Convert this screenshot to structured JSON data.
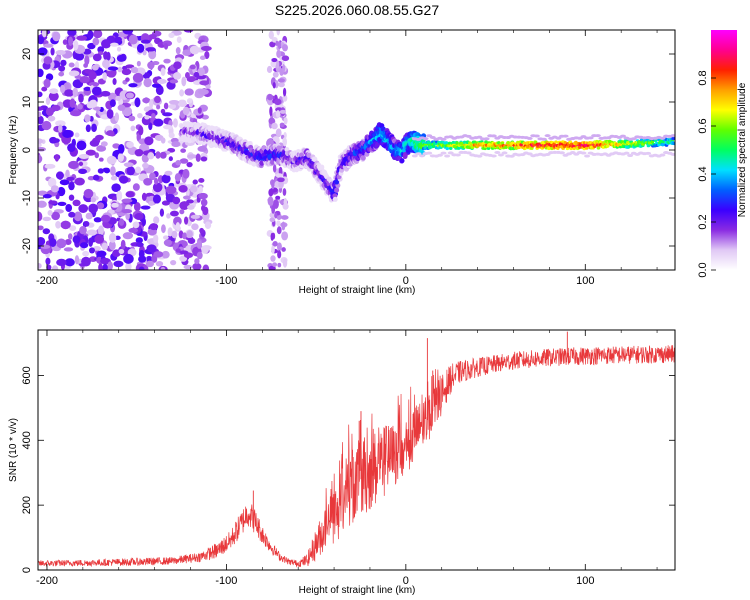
{
  "title": "S225.2026.060.08.55.G27",
  "chart_data": [
    {
      "type": "heatmap",
      "xlabel": "Height of straight line (km)",
      "ylabel": "Frequency (Hz)",
      "xlim": [
        -205,
        150
      ],
      "ylim": [
        -25,
        25
      ],
      "x_ticks": [
        -200,
        -100,
        0,
        100
      ],
      "y_ticks": [
        -20,
        -10,
        0,
        10,
        20
      ],
      "x_tick_labels": [
        "-200",
        "-100",
        "0",
        "100"
      ],
      "y_tick_labels": [
        "-20",
        "-10",
        "0",
        "10",
        "20"
      ],
      "colorbar": {
        "label": "Normalized spectral amplitude",
        "range": [
          0,
          1
        ],
        "ticks": [
          0.0,
          0.2,
          0.4,
          0.6,
          0.8
        ],
        "tick_labels": [
          "0.0",
          "0.2",
          "0.4",
          "0.6",
          "0.8"
        ],
        "colormap": [
          "#ffffff",
          "#e0c8f5",
          "#8a2be2",
          "#3a00ff",
          "#0060ff",
          "#00e0ff",
          "#00ff60",
          "#60ff00",
          "#ffff00",
          "#ffa000",
          "#ff2000",
          "#ff0090",
          "#ff00ff"
        ]
      },
      "ridge": {
        "x": [
          -125,
          -115,
          -105,
          -98,
          -90,
          -82,
          -75,
          -68,
          -62,
          -55,
          -48,
          -44,
          -40,
          -36,
          -30,
          -24,
          -18,
          -14,
          -10,
          -6,
          -2,
          2,
          6,
          10,
          20,
          40,
          60,
          80,
          100,
          120,
          150
        ],
        "y": [
          4.0,
          3.5,
          2.5,
          1.5,
          0.0,
          -1.5,
          -1.0,
          -1.0,
          -2.5,
          -1.5,
          -5.0,
          -7.0,
          -9.0,
          -3.0,
          -1.0,
          0.0,
          2.0,
          3.5,
          2.0,
          0.0,
          -0.5,
          2.0,
          1.5,
          1.0,
          1.0,
          1.0,
          1.0,
          1.0,
          1.0,
          1.2,
          1.8
        ],
        "amplitude": [
          0.15,
          0.2,
          0.22,
          0.24,
          0.25,
          0.28,
          0.3,
          0.24,
          0.2,
          0.27,
          0.22,
          0.25,
          0.3,
          0.25,
          0.28,
          0.32,
          0.38,
          0.45,
          0.4,
          0.38,
          0.42,
          0.45,
          0.55,
          0.6,
          0.62,
          0.75,
          0.82,
          0.88,
          0.9,
          0.72,
          0.5
        ]
      }
    },
    {
      "type": "line",
      "xlabel": "Height of straight line (km)",
      "ylabel": "SNR (10 * v/v)",
      "xlim": [
        -205,
        150
      ],
      "ylim": [
        0,
        740
      ],
      "x_ticks": [
        -200,
        -100,
        0,
        100
      ],
      "y_ticks": [
        0,
        200,
        400,
        600
      ],
      "x_tick_labels": [
        "-200",
        "-100",
        "0",
        "100"
      ],
      "y_tick_labels": [
        "0",
        "200",
        "400",
        "600"
      ],
      "color": "#e8383b",
      "series": [
        {
          "name": "SNR",
          "x": [
            -205,
            -180,
            -150,
            -130,
            -115,
            -105,
            -98,
            -92,
            -88,
            -84,
            -80,
            -75,
            -70,
            -65,
            -60,
            -55,
            -50,
            -45,
            -40,
            -35,
            -30,
            -25,
            -20,
            -15,
            -10,
            -5,
            0,
            5,
            10,
            15,
            20,
            25,
            30,
            40,
            50,
            60,
            70,
            80,
            90,
            100,
            110,
            120,
            130,
            140,
            150
          ],
          "y": [
            20,
            22,
            25,
            28,
            40,
            60,
            90,
            140,
            180,
            150,
            110,
            70,
            40,
            25,
            20,
            30,
            80,
            130,
            170,
            210,
            260,
            280,
            300,
            320,
            340,
            360,
            380,
            420,
            450,
            490,
            540,
            590,
            610,
            625,
            635,
            645,
            650,
            655,
            658,
            660,
            662,
            663,
            664,
            665,
            666
          ],
          "noise": [
            10,
            10,
            12,
            12,
            15,
            25,
            30,
            40,
            45,
            40,
            30,
            20,
            12,
            10,
            10,
            20,
            50,
            70,
            90,
            110,
            120,
            130,
            120,
            120,
            110,
            100,
            90,
            90,
            80,
            70,
            60,
            45,
            35,
            30,
            28,
            28,
            28,
            28,
            28,
            28,
            28,
            28,
            28,
            28,
            28
          ],
          "peaks": [
            {
              "x": -85,
              "y": 245
            },
            {
              "x": -26,
              "y": 460
            },
            {
              "x": -25,
              "y": 490
            },
            {
              "x": 12,
              "y": 715
            },
            {
              "x": 15,
              "y": 615
            },
            {
              "x": 90,
              "y": 735
            }
          ]
        }
      ]
    }
  ]
}
